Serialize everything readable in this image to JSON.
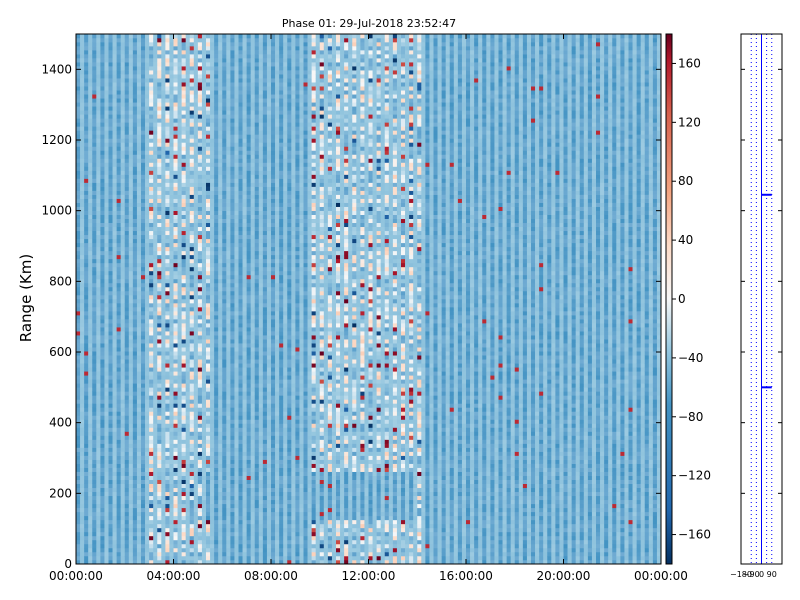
{
  "chart_data": [
    {
      "type": "heatmap",
      "title": "Phase 01: 29-Jul-2018 23:52:47",
      "xlabel": "",
      "ylabel": "Range (Km)",
      "x_ticks": [
        "00:00:00",
        "04:00:00",
        "08:00:00",
        "12:00:00",
        "16:00:00",
        "20:00:00",
        "00:00:00"
      ],
      "y_ticks": [
        0,
        200,
        400,
        600,
        800,
        1000,
        1200,
        1400
      ],
      "ylim": [
        0,
        1500
      ],
      "colorscale": "RdBu_r",
      "colorbar_ticks": [
        160,
        120,
        80,
        40,
        0,
        -40,
        -80,
        -120,
        -160
      ],
      "colorbar_range": [
        -180,
        180
      ],
      "dominant_value_approx": -100,
      "high_variance_time_bands": [
        "03:00-05:30",
        "09:30-14:00"
      ],
      "grid": false
    },
    {
      "type": "line",
      "title": "",
      "xlabel": "",
      "ylabel": "",
      "x_ticks": [
        "−180",
        "−90",
        "0",
        "90"
      ],
      "xlim": [
        -180,
        180
      ],
      "ylim": [
        0,
        1500
      ],
      "y_ticks": [
        200,
        400,
        600,
        800,
        1000,
        1200,
        1400
      ],
      "series": [
        {
          "points": [
            {
              "x": 0,
              "y": 500
            },
            {
              "x": 90,
              "y": 500
            }
          ]
        },
        {
          "points": [
            {
              "x": 0,
              "y": 1045
            },
            {
              "x": 90,
              "y": 1045
            }
          ]
        }
      ],
      "vertical_lines": [
        {
          "x": 0,
          "style": "solid"
        },
        {
          "x": -90,
          "style": "dotted"
        },
        {
          "x": -45,
          "style": "dotted"
        },
        {
          "x": 45,
          "style": "dotted"
        },
        {
          "x": 90,
          "style": "dotted"
        }
      ],
      "grid": false
    }
  ]
}
